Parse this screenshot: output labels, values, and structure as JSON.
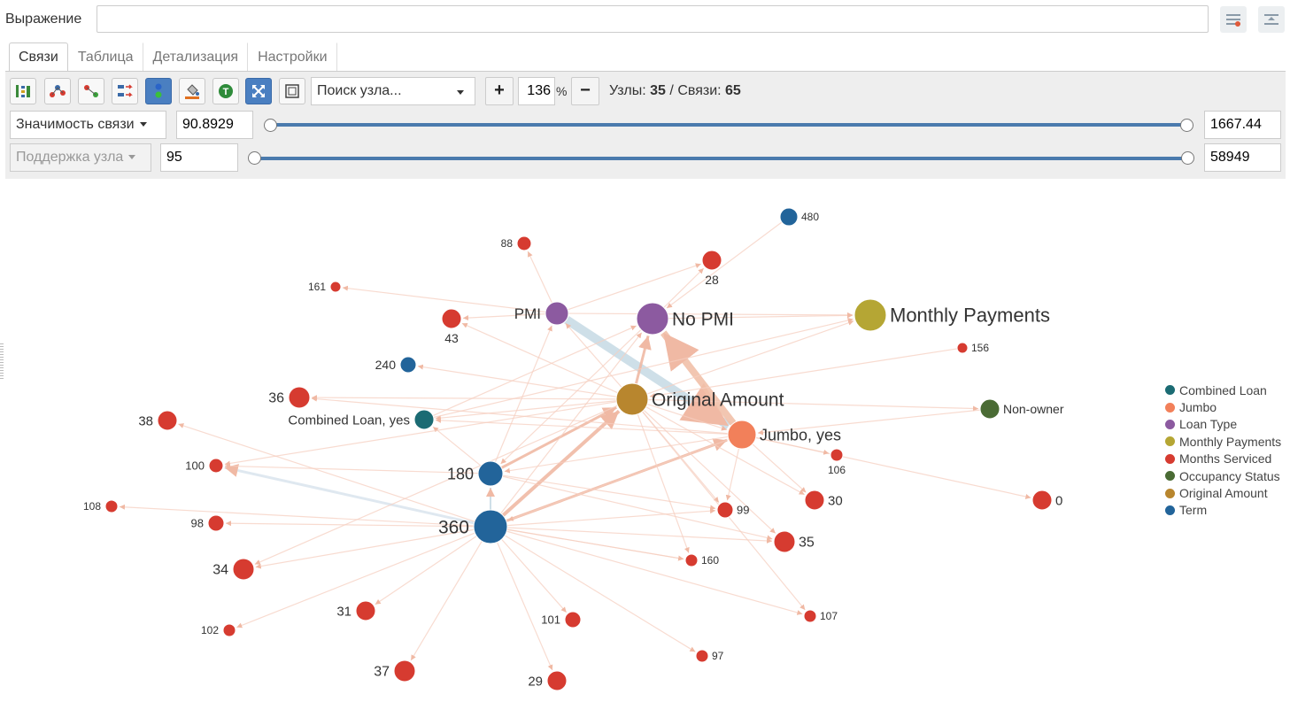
{
  "expression": {
    "label": "Выражение",
    "value": ""
  },
  "tabs": [
    {
      "label": "Связи",
      "active": true
    },
    {
      "label": "Таблица",
      "active": false
    },
    {
      "label": "Детализация",
      "active": false
    },
    {
      "label": "Настройки",
      "active": false
    }
  ],
  "toolbar": {
    "search_placeholder": "Поиск узла...",
    "zoom_in": "+",
    "zoom_value": "136",
    "zoom_unit": "%",
    "zoom_out": "−",
    "nodes_label": "Узлы:",
    "nodes_count": "35",
    "links_label": "Связи:",
    "links_count": "65",
    "separator": "/"
  },
  "filters": {
    "link": {
      "label": "Значимость связи",
      "min": "90.8929",
      "max": "1667.44"
    },
    "node": {
      "label": "Поддержка узла",
      "min": "95",
      "max": "58949"
    }
  },
  "colors": {
    "Combined Loan": "#1b6b73",
    "Jumbo": "#f2805a",
    "Loan Type": "#8c5aa0",
    "Monthly Payments": "#b5a634",
    "Months Serviced": "#d63b30",
    "Occupancy Status": "#4a6b34",
    "Original Amount": "#b8862e",
    "Term": "#22649a"
  },
  "legend": [
    "Combined Loan",
    "Jumbo",
    "Loan Type",
    "Monthly Payments",
    "Months Serviced",
    "Occupancy Status",
    "Original Amount",
    "Term"
  ],
  "graph": {
    "nodes": [
      {
        "id": "480",
        "label": "480",
        "group": "Term"
      },
      {
        "id": "88",
        "label": "88",
        "group": "Months Serviced"
      },
      {
        "id": "28",
        "label": "28",
        "group": "Months Serviced"
      },
      {
        "id": "161",
        "label": "161",
        "group": "Months Serviced"
      },
      {
        "id": "PMI",
        "label": "PMI",
        "group": "Loan Type"
      },
      {
        "id": "NoPMI",
        "label": "No PMI",
        "group": "Loan Type"
      },
      {
        "id": "MP",
        "label": "Monthly Payments",
        "group": "Monthly Payments"
      },
      {
        "id": "43",
        "label": "43",
        "group": "Months Serviced"
      },
      {
        "id": "156",
        "label": "156",
        "group": "Months Serviced"
      },
      {
        "id": "240",
        "label": "240",
        "group": "Term"
      },
      {
        "id": "36",
        "label": "36",
        "group": "Months Serviced"
      },
      {
        "id": "OA",
        "label": "Original Amount",
        "group": "Original Amount"
      },
      {
        "id": "NonOwner",
        "label": "Non-owner",
        "group": "Occupancy Status"
      },
      {
        "id": "CL",
        "label": "Combined Loan, yes",
        "group": "Combined Loan"
      },
      {
        "id": "38",
        "label": "38",
        "group": "Months Serviced"
      },
      {
        "id": "Jumbo",
        "label": "Jumbo, yes",
        "group": "Jumbo"
      },
      {
        "id": "106",
        "label": "106",
        "group": "Months Serviced"
      },
      {
        "id": "100",
        "label": "100",
        "group": "Months Serviced"
      },
      {
        "id": "180",
        "label": "180",
        "group": "Term"
      },
      {
        "id": "30",
        "label": "30",
        "group": "Months Serviced"
      },
      {
        "id": "0",
        "label": "0",
        "group": "Months Serviced"
      },
      {
        "id": "108",
        "label": "108",
        "group": "Months Serviced"
      },
      {
        "id": "99",
        "label": "99",
        "group": "Months Serviced"
      },
      {
        "id": "98",
        "label": "98",
        "group": "Months Serviced"
      },
      {
        "id": "360",
        "label": "360",
        "group": "Term"
      },
      {
        "id": "35",
        "label": "35",
        "group": "Months Serviced"
      },
      {
        "id": "34",
        "label": "34",
        "group": "Months Serviced"
      },
      {
        "id": "160",
        "label": "160",
        "group": "Months Serviced"
      },
      {
        "id": "31",
        "label": "31",
        "group": "Months Serviced"
      },
      {
        "id": "107",
        "label": "107",
        "group": "Months Serviced"
      },
      {
        "id": "101",
        "label": "101",
        "group": "Months Serviced"
      },
      {
        "id": "102",
        "label": "102",
        "group": "Months Serviced"
      },
      {
        "id": "97",
        "label": "97",
        "group": "Months Serviced"
      },
      {
        "id": "37",
        "label": "37",
        "group": "Months Serviced"
      },
      {
        "id": "29",
        "label": "29",
        "group": "Months Serviced"
      }
    ],
    "links": [
      [
        "PMI",
        "Jumbo"
      ],
      [
        "Jumbo",
        "NoPMI"
      ],
      [
        "NoPMI",
        "MP"
      ],
      [
        "480",
        "NoPMI"
      ],
      [
        "180",
        "PMI"
      ],
      [
        "OA",
        "NoPMI"
      ],
      [
        "OA",
        "PMI"
      ],
      [
        "OA",
        "MP"
      ],
      [
        "OA",
        "43"
      ],
      [
        "OA",
        "36"
      ],
      [
        "OA",
        "240"
      ],
      [
        "OA",
        "CL"
      ],
      [
        "OA",
        "NonOwner"
      ],
      [
        "OA",
        "Jumbo"
      ],
      [
        "180",
        "OA"
      ],
      [
        "360",
        "OA"
      ],
      [
        "360",
        "Jumbo"
      ],
      [
        "360",
        "NoPMI"
      ],
      [
        "360",
        "100"
      ],
      [
        "360",
        "98"
      ],
      [
        "360",
        "34"
      ],
      [
        "360",
        "180"
      ],
      [
        "360",
        "99"
      ],
      [
        "360",
        "35"
      ],
      [
        "360",
        "108"
      ],
      [
        "360",
        "160"
      ],
      [
        "360",
        "107"
      ],
      [
        "360",
        "101"
      ],
      [
        "360",
        "97"
      ],
      [
        "360",
        "31"
      ],
      [
        "360",
        "37"
      ],
      [
        "360",
        "29"
      ],
      [
        "360",
        "102"
      ],
      [
        "360",
        "38"
      ],
      [
        "180",
        "100"
      ],
      [
        "180",
        "99"
      ],
      [
        "180",
        "CL"
      ],
      [
        "180",
        "35"
      ],
      [
        "PMI",
        "88"
      ],
      [
        "PMI",
        "161"
      ],
      [
        "PMI",
        "28"
      ],
      [
        "NoPMI",
        "28"
      ],
      [
        "PMI",
        "MP"
      ],
      [
        "Jumbo",
        "99"
      ],
      [
        "Jumbo",
        "CL"
      ],
      [
        "Jumbo",
        "36"
      ],
      [
        "Jumbo",
        "0"
      ],
      [
        "Jumbo",
        "30"
      ],
      [
        "Jumbo",
        "106"
      ],
      [
        "OA",
        "30"
      ],
      [
        "OA",
        "160"
      ],
      [
        "OA",
        "99"
      ],
      [
        "CL",
        "MP"
      ],
      [
        "NonOwner",
        "Jumbo"
      ],
      [
        "156",
        "OA"
      ],
      [
        "OA",
        "35"
      ],
      [
        "OA",
        "34"
      ],
      [
        "OA",
        "100"
      ],
      [
        "NoPMI",
        "180"
      ],
      [
        "Jumbo",
        "180"
      ],
      [
        "Jumbo",
        "360"
      ],
      [
        "360",
        "160"
      ],
      [
        "OA",
        "107"
      ],
      [
        "CL",
        "NoPMI"
      ],
      [
        "PMI",
        "43"
      ]
    ]
  }
}
